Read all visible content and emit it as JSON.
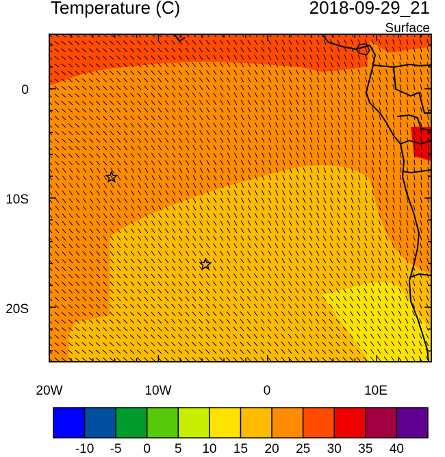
{
  "header": {
    "title": "Temperature (C)",
    "datetime": "2018-09-29_21",
    "level": "Surface"
  },
  "map": {
    "lon_ticks": [
      "20W",
      "10W",
      "0",
      "10E"
    ],
    "lat_ticks": [
      "0",
      "10S",
      "20S"
    ],
    "lon_range": [
      -20,
      15
    ],
    "lat_range": [
      -25,
      5
    ],
    "markers": [
      {
        "icon": "star-icon",
        "lon": -14.3,
        "lat": -8.1
      },
      {
        "icon": "star-icon",
        "lon": -5.7,
        "lat": -16.1
      }
    ]
  },
  "colorbar": {
    "labels": [
      "-10",
      "-5",
      "0",
      "5",
      "10",
      "15",
      "20",
      "25",
      "30",
      "35",
      "40"
    ],
    "colors": [
      "#0000ff",
      "#00509f",
      "#009b2c",
      "#57c80a",
      "#c8ee00",
      "#ffe300",
      "#ffbb00",
      "#ff8c00",
      "#ff4a00",
      "#ee0000",
      "#a20040",
      "#5f0090"
    ]
  }
}
